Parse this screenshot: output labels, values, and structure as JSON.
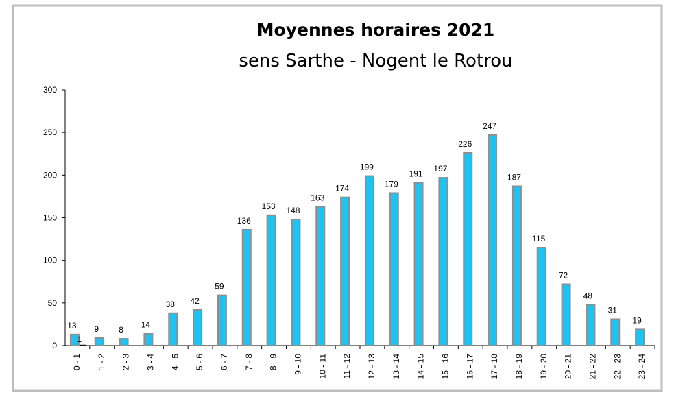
{
  "chart_data": {
    "type": "bar",
    "title": "Moyennes horaires 2021",
    "subtitle": "sens Sarthe - Nogent le Rotrou",
    "categories": [
      "0 - 1",
      "1 - 2",
      "2 - 3",
      "3 - 4",
      "4 - 5",
      "5 - 6",
      "6 - 7",
      "7 - 8",
      "8 - 9",
      "9 - 10",
      "10 - 11",
      "11 - 12",
      "12 - 13",
      "13 - 14",
      "14 - 15",
      "15 - 16",
      "16 - 17",
      "17 - 18",
      "18 - 19",
      "19 - 20",
      "20 - 21",
      "21 - 22",
      "22 - 23",
      "23 - 24"
    ],
    "series": [
      {
        "color": "#1ec3f2",
        "values": [
          13,
          9,
          8,
          14,
          38,
          42,
          59,
          136,
          153,
          148,
          163,
          174,
          199,
          179,
          191,
          197,
          226,
          247,
          187,
          115,
          72,
          48,
          31,
          19
        ]
      },
      {
        "color": "#111111",
        "values": [
          1,
          null,
          null,
          null,
          null,
          null,
          null,
          null,
          null,
          null,
          null,
          null,
          null,
          null,
          null,
          null,
          null,
          null,
          null,
          null,
          null,
          null,
          null,
          null
        ]
      }
    ],
    "ylim": [
      0,
      300
    ],
    "yticks": [
      0,
      50,
      100,
      150,
      200,
      250,
      300
    ],
    "grid": false
  }
}
